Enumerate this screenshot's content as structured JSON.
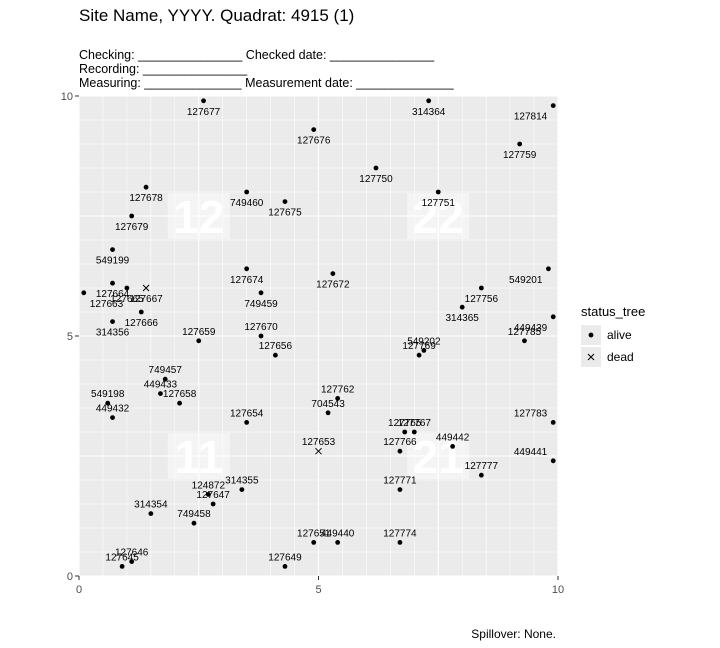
{
  "header": {
    "title": "Site Name, YYYY. Quadrat: 4915 (1)",
    "line1": "Checking: _______________ Checked date: _______________",
    "line2": "Recording: _______________",
    "line3": "Measuring: ______________ Measurement date: ______________"
  },
  "caption": "Spillover: None.",
  "legend": {
    "title": "status_tree",
    "items": [
      {
        "label": "alive"
      },
      {
        "label": "dead"
      }
    ]
  },
  "chart_data": {
    "type": "scatter",
    "xlim": [
      0,
      10
    ],
    "ylim": [
      0,
      10
    ],
    "x_ticks": [
      0,
      5,
      10
    ],
    "y_ticks": [
      0,
      5,
      10
    ],
    "grid": true,
    "legend_position": "right",
    "colors": {
      "panel": "#ebebeb",
      "grid": "#ffffff",
      "point": "#000000",
      "subquadrat_label": "#ffffff"
    },
    "subquadrats": [
      {
        "label": "12",
        "x": 2.5,
        "y": 7.5
      },
      {
        "label": "22",
        "x": 7.5,
        "y": 7.5
      },
      {
        "label": "11",
        "x": 2.5,
        "y": 2.5
      },
      {
        "label": "21",
        "x": 7.5,
        "y": 2.5
      }
    ],
    "points": [
      {
        "tag": "127677",
        "x": 2.6,
        "y": 9.9,
        "status": "alive"
      },
      {
        "tag": "127676",
        "x": 4.9,
        "y": 9.3,
        "status": "alive"
      },
      {
        "tag": "314364",
        "x": 7.3,
        "y": 9.9,
        "status": "alive"
      },
      {
        "tag": "127814",
        "x": 9.9,
        "y": 9.8,
        "status": "alive"
      },
      {
        "tag": "127759",
        "x": 9.2,
        "y": 9.0,
        "status": "alive"
      },
      {
        "tag": "127750",
        "x": 6.2,
        "y": 8.5,
        "status": "alive"
      },
      {
        "tag": "127751",
        "x": 7.5,
        "y": 8.0,
        "status": "alive"
      },
      {
        "tag": "127678",
        "x": 1.4,
        "y": 8.1,
        "status": "alive"
      },
      {
        "tag": "749460",
        "x": 3.5,
        "y": 8.0,
        "status": "alive"
      },
      {
        "tag": "127675",
        "x": 4.3,
        "y": 7.8,
        "status": "alive"
      },
      {
        "tag": "127679",
        "x": 1.1,
        "y": 7.5,
        "status": "alive"
      },
      {
        "tag": "549199",
        "x": 0.7,
        "y": 6.8,
        "status": "alive"
      },
      {
        "tag": "127674",
        "x": 3.5,
        "y": 6.4,
        "status": "alive"
      },
      {
        "tag": "127672",
        "x": 5.3,
        "y": 6.3,
        "status": "alive"
      },
      {
        "tag": "549201",
        "x": 9.8,
        "y": 6.4,
        "status": "alive"
      },
      {
        "tag": "127664",
        "x": 0.7,
        "y": 6.1,
        "status": "alive"
      },
      {
        "tag": "127667",
        "x": 1.4,
        "y": 6.0,
        "status": "dead"
      },
      {
        "tag": "127663",
        "x": 0.1,
        "y": 5.9,
        "status": "alive"
      },
      {
        "tag": "127665",
        "x": 1.0,
        "y": 6.0,
        "status": "alive"
      },
      {
        "tag": "749459",
        "x": 3.8,
        "y": 5.9,
        "status": "alive"
      },
      {
        "tag": "127756",
        "x": 8.4,
        "y": 6.0,
        "status": "alive"
      },
      {
        "tag": "127666",
        "x": 1.3,
        "y": 5.5,
        "status": "alive"
      },
      {
        "tag": "314365",
        "x": 8.0,
        "y": 5.6,
        "status": "alive"
      },
      {
        "tag": "449439",
        "x": 9.9,
        "y": 5.4,
        "status": "alive"
      },
      {
        "tag": "314356",
        "x": 0.7,
        "y": 5.3,
        "status": "alive"
      },
      {
        "tag": "127659",
        "x": 2.5,
        "y": 4.9,
        "status": "alive"
      },
      {
        "tag": "127670",
        "x": 3.8,
        "y": 5.0,
        "status": "alive"
      },
      {
        "tag": "127785",
        "x": 9.3,
        "y": 4.9,
        "status": "alive"
      },
      {
        "tag": "127656",
        "x": 4.1,
        "y": 4.6,
        "status": "alive"
      },
      {
        "tag": "549202",
        "x": 7.2,
        "y": 4.7,
        "status": "alive"
      },
      {
        "tag": "127769",
        "x": 7.1,
        "y": 4.6,
        "status": "alive"
      },
      {
        "tag": "749457",
        "x": 1.8,
        "y": 4.1,
        "status": "alive"
      },
      {
        "tag": "449433",
        "x": 1.7,
        "y": 3.8,
        "status": "alive"
      },
      {
        "tag": "127762",
        "x": 5.4,
        "y": 3.7,
        "status": "alive"
      },
      {
        "tag": "549198",
        "x": 0.6,
        "y": 3.6,
        "status": "alive"
      },
      {
        "tag": "127658",
        "x": 2.1,
        "y": 3.6,
        "status": "alive"
      },
      {
        "tag": "704543",
        "x": 5.2,
        "y": 3.4,
        "status": "alive"
      },
      {
        "tag": "449432",
        "x": 0.7,
        "y": 3.3,
        "status": "alive"
      },
      {
        "tag": "127654",
        "x": 3.5,
        "y": 3.2,
        "status": "alive"
      },
      {
        "tag": "127767",
        "x": 7.0,
        "y": 3.0,
        "status": "alive"
      },
      {
        "tag": "127783",
        "x": 9.9,
        "y": 3.2,
        "status": "alive"
      },
      {
        "tag": "127765",
        "x": 6.8,
        "y": 3.0,
        "status": "alive"
      },
      {
        "tag": "127653",
        "x": 5.0,
        "y": 2.6,
        "status": "dead"
      },
      {
        "tag": "127766",
        "x": 6.7,
        "y": 2.6,
        "status": "alive"
      },
      {
        "tag": "449442",
        "x": 7.8,
        "y": 2.7,
        "status": "alive"
      },
      {
        "tag": "449441",
        "x": 9.9,
        "y": 2.4,
        "status": "alive"
      },
      {
        "tag": "127771",
        "x": 6.7,
        "y": 1.8,
        "status": "alive"
      },
      {
        "tag": "127777",
        "x": 8.4,
        "y": 2.1,
        "status": "alive"
      },
      {
        "tag": "314355",
        "x": 3.4,
        "y": 1.8,
        "status": "alive"
      },
      {
        "tag": "124872",
        "x": 2.7,
        "y": 1.7,
        "status": "alive"
      },
      {
        "tag": "127647",
        "x": 2.8,
        "y": 1.5,
        "status": "alive"
      },
      {
        "tag": "314354",
        "x": 1.5,
        "y": 1.3,
        "status": "alive"
      },
      {
        "tag": "749458",
        "x": 2.4,
        "y": 1.1,
        "status": "alive"
      },
      {
        "tag": "127774",
        "x": 6.7,
        "y": 0.7,
        "status": "alive"
      },
      {
        "tag": "127651",
        "x": 4.9,
        "y": 0.7,
        "status": "alive"
      },
      {
        "tag": "449440",
        "x": 5.4,
        "y": 0.7,
        "status": "alive"
      },
      {
        "tag": "127646",
        "x": 1.1,
        "y": 0.3,
        "status": "alive"
      },
      {
        "tag": "127645",
        "x": 0.9,
        "y": 0.2,
        "status": "alive"
      },
      {
        "tag": "127649",
        "x": 4.3,
        "y": 0.2,
        "status": "alive"
      }
    ]
  }
}
